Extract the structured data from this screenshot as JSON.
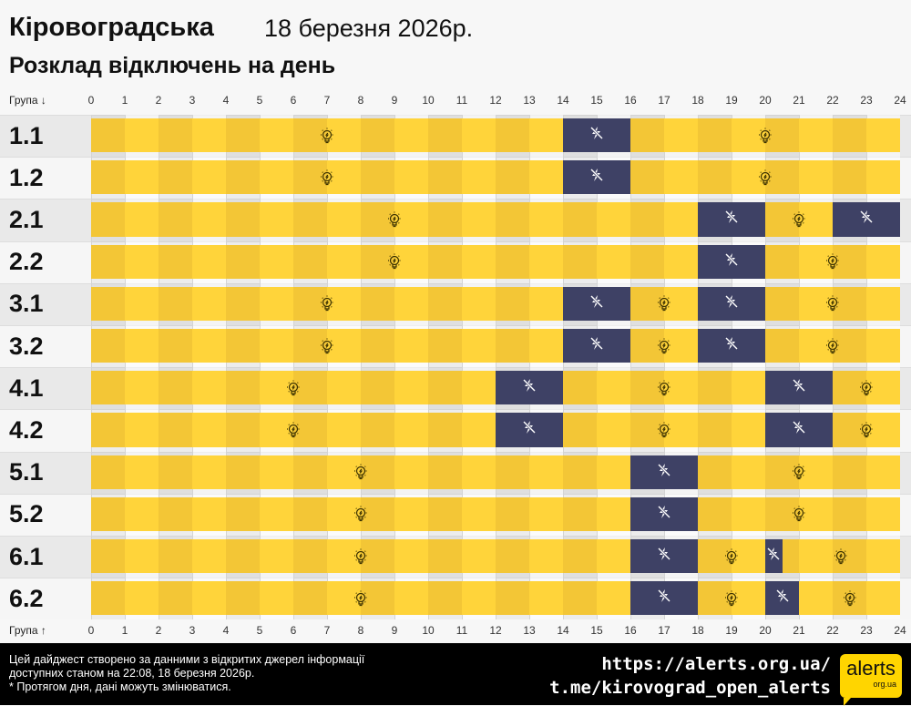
{
  "header": {
    "region": "Кіровоградська",
    "date": "18 березня 2026р.",
    "subtitle": "Розклад відключень на день"
  },
  "axis": {
    "top_label": "Група ↓",
    "bottom_label": "Група ↑",
    "ticks": [
      "0",
      "1",
      "2",
      "3",
      "4",
      "5",
      "6",
      "7",
      "8",
      "9",
      "10",
      "11",
      "12",
      "13",
      "14",
      "15",
      "16",
      "17",
      "18",
      "19",
      "20",
      "21",
      "22",
      "23",
      "24"
    ]
  },
  "colors": {
    "power_on": "#ffd43a",
    "power_on_alt": "#f3c636",
    "power_off": "#3e4165"
  },
  "icons": {
    "power_on": "lightbulb-icon",
    "power_off": "no-power-icon"
  },
  "groups": [
    {
      "label": "1.1",
      "outages": [
        [
          14,
          16
        ]
      ]
    },
    {
      "label": "1.2",
      "outages": [
        [
          14,
          16
        ]
      ]
    },
    {
      "label": "2.1",
      "outages": [
        [
          18,
          20
        ],
        [
          22,
          24
        ]
      ]
    },
    {
      "label": "2.2",
      "outages": [
        [
          18,
          20
        ]
      ]
    },
    {
      "label": "3.1",
      "outages": [
        [
          14,
          16
        ],
        [
          18,
          20
        ]
      ]
    },
    {
      "label": "3.2",
      "outages": [
        [
          14,
          16
        ],
        [
          18,
          20
        ]
      ]
    },
    {
      "label": "4.1",
      "outages": [
        [
          12,
          14
        ],
        [
          20,
          22
        ]
      ]
    },
    {
      "label": "4.2",
      "outages": [
        [
          12,
          14
        ],
        [
          20,
          22
        ]
      ]
    },
    {
      "label": "5.1",
      "outages": [
        [
          16,
          18
        ]
      ]
    },
    {
      "label": "5.2",
      "outages": [
        [
          16,
          18
        ]
      ]
    },
    {
      "label": "6.1",
      "outages": [
        [
          16,
          18
        ],
        [
          20,
          20.5
        ]
      ]
    },
    {
      "label": "6.2",
      "outages": [
        [
          16,
          18
        ],
        [
          20,
          21
        ]
      ]
    }
  ],
  "footer": {
    "note_line1": "Цей дайджест створено за данними з відкритих джерел інформації",
    "note_line2": "доступних станом на 22:08, 18 березня 2026р.",
    "note_line3": "* Протягом дня, дані можуть змінюватися.",
    "link1": "https://alerts.org.ua/",
    "link2": "t.me/kirovograd_open_alerts",
    "logo_text": "alerts",
    "logo_sub": "org.ua"
  }
}
